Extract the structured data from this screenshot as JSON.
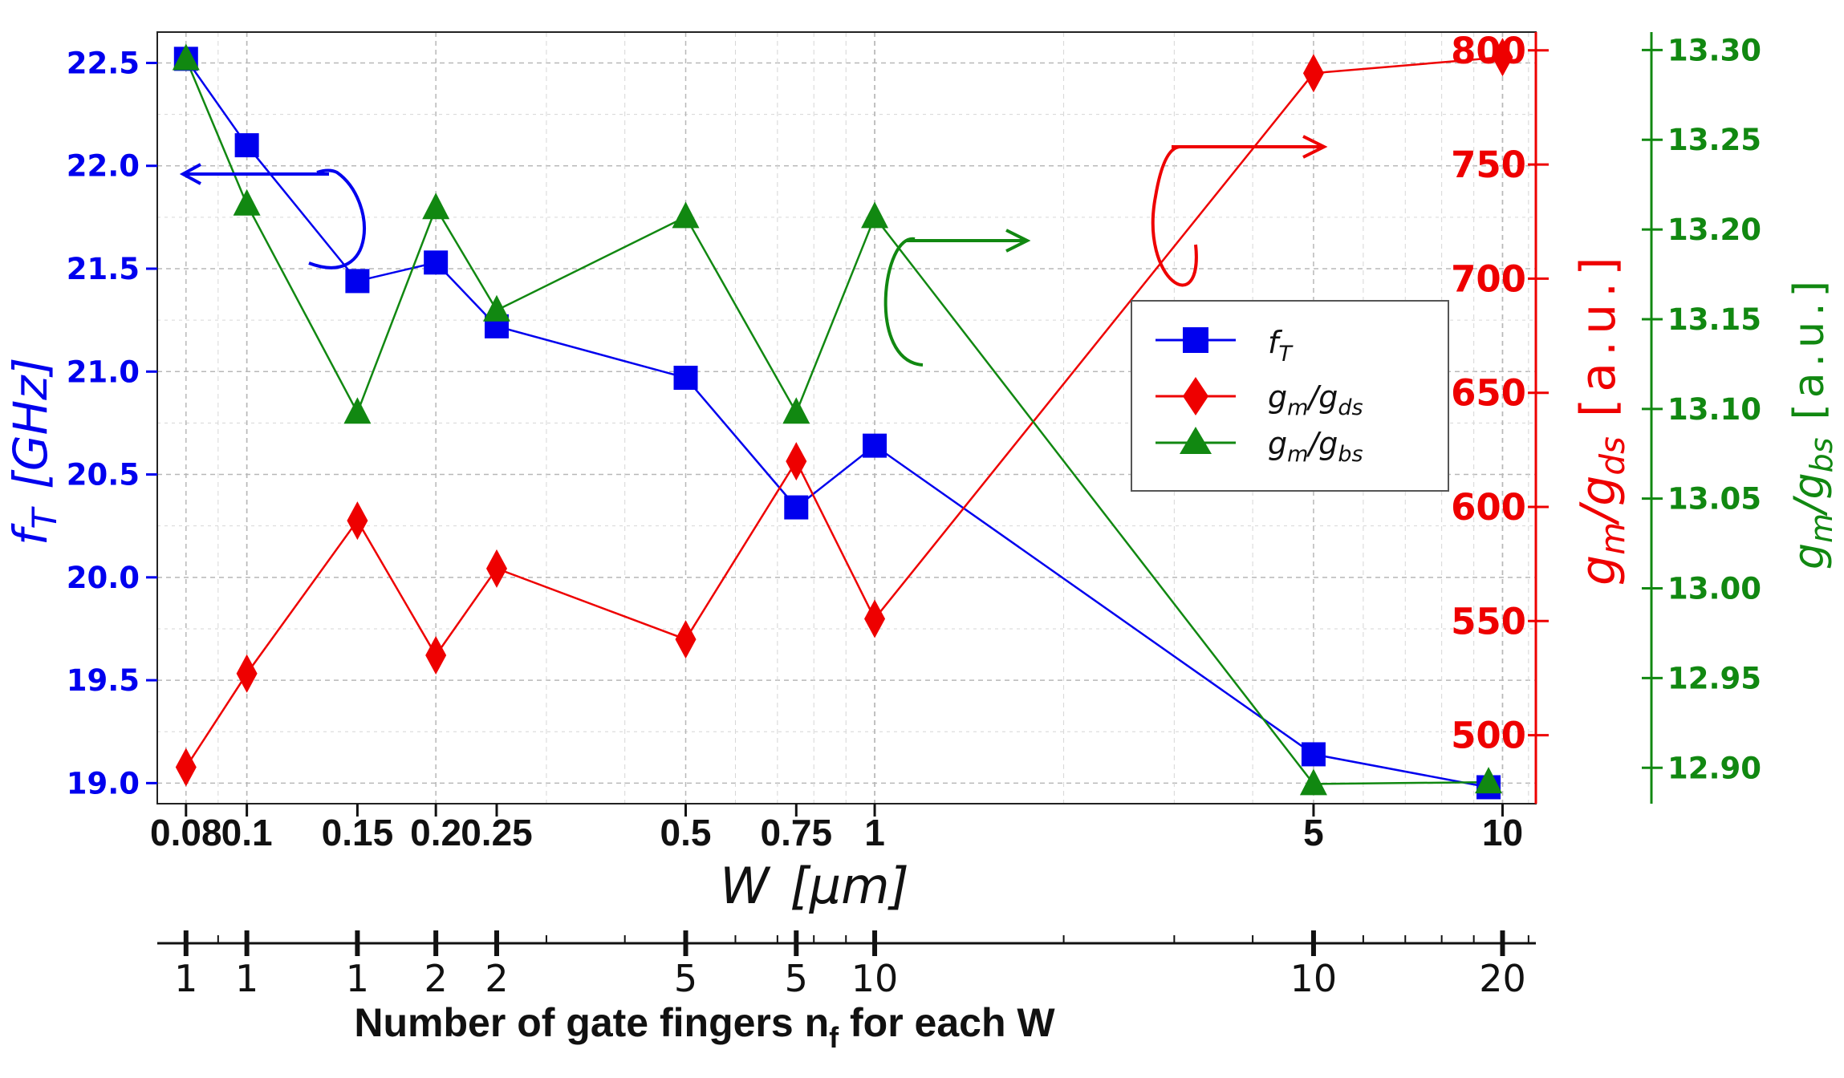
{
  "chart_data": {
    "type": "line",
    "x_axis": {
      "label_var": "W",
      "label_unit": "[μm]",
      "scale": "log",
      "tick_labels": [
        "0.08",
        "0.1",
        "0.15",
        "0.2",
        "0.25",
        "0.5",
        "0.75",
        "1",
        "5",
        "10"
      ],
      "tick_values": [
        0.08,
        0.1,
        0.15,
        0.2,
        0.25,
        0.5,
        0.75,
        1,
        5,
        10
      ]
    },
    "secondary_x_axis": {
      "title_prefix": "Number of gate fingers n",
      "title_sub": "f",
      "title_suffix": " for each W",
      "tick_labels": [
        "1",
        "1",
        "1",
        "2",
        "2",
        "5",
        "5",
        "10",
        "10",
        "20"
      ]
    },
    "y_left": {
      "label_main": "f",
      "label_sub": "T",
      "label_unit": "[GHz]",
      "ylim": [
        18.9,
        22.65
      ],
      "ticks": [
        "19.0",
        "19.5",
        "20.0",
        "20.5",
        "21.0",
        "21.5",
        "22.0",
        "22.5"
      ],
      "color": "#0000ee"
    },
    "y_right1": {
      "label_main": "g",
      "label_sub1": "m",
      "label_mid": "/g",
      "label_sub2": "ds",
      "label_unit": "[a.u.]",
      "ylim": [
        470,
        808
      ],
      "ticks": [
        "500",
        "550",
        "600",
        "650",
        "700",
        "750",
        "800"
      ],
      "color": "#ee0000"
    },
    "y_right2": {
      "label_main": "g",
      "label_sub1": "m",
      "label_mid": "/g",
      "label_sub2": "bs",
      "label_unit": "[a.u.]",
      "ylim": [
        12.88,
        13.31
      ],
      "ticks": [
        "12.90",
        "12.95",
        "13.00",
        "13.05",
        "13.10",
        "13.15",
        "13.20",
        "13.25",
        "13.30"
      ],
      "color": "#118811"
    },
    "series": [
      {
        "name": "f_T",
        "legend_main": "f",
        "legend_sub": "T",
        "axis": "left",
        "marker": "square",
        "color": "#0000ee",
        "x": [
          0.08,
          0.1,
          0.15,
          0.2,
          0.25,
          0.5,
          0.75,
          1,
          5,
          9.5
        ],
        "y": [
          22.52,
          22.1,
          21.44,
          21.53,
          21.22,
          20.97,
          20.34,
          20.64,
          19.14,
          18.98
        ]
      },
      {
        "name": "g_m/g_ds",
        "legend_main": "g",
        "legend_sub1": "m",
        "legend_mid": "/g",
        "legend_sub2": "ds",
        "axis": "right1",
        "marker": "diamond",
        "color": "#ee0000",
        "x": [
          0.08,
          0.1,
          0.15,
          0.2,
          0.25,
          0.5,
          0.75,
          1,
          5,
          10
        ],
        "y": [
          486,
          527,
          594,
          535,
          573,
          542,
          620,
          551,
          790,
          797
        ]
      },
      {
        "name": "g_m/g_bs",
        "legend_main": "g",
        "legend_sub1": "m",
        "legend_mid": "/g",
        "legend_sub2": "bs",
        "axis": "right2",
        "marker": "triangle",
        "color": "#118811",
        "x": [
          0.08,
          0.1,
          0.15,
          0.2,
          0.25,
          0.5,
          0.75,
          1,
          5,
          9.5
        ],
        "y": [
          13.295,
          13.214,
          13.098,
          13.212,
          13.155,
          13.207,
          13.098,
          13.207,
          12.891,
          12.892
        ]
      }
    ],
    "legend": {
      "position": "upper-right-inside"
    }
  }
}
